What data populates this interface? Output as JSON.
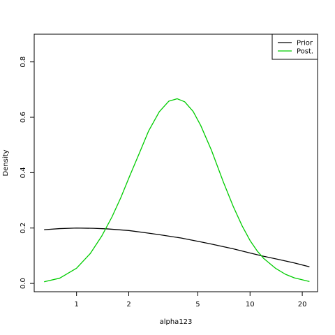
{
  "chart_data": {
    "type": "line",
    "title": "",
    "xlabel": "alpha123",
    "ylabel": "Density",
    "x_scale": "log",
    "xlim": [
      0.57,
      24.5
    ],
    "ylim": [
      -0.03,
      0.9
    ],
    "x_ticks": [
      {
        "value": 1,
        "label": "1"
      },
      {
        "value": 2,
        "label": "2"
      },
      {
        "value": 5,
        "label": "5"
      },
      {
        "value": 10,
        "label": "10"
      },
      {
        "value": 20,
        "label": "20"
      }
    ],
    "y_ticks": [
      {
        "value": 0.0,
        "label": "0.0"
      },
      {
        "value": 0.2,
        "label": "0.2"
      },
      {
        "value": 0.4,
        "label": "0.4"
      },
      {
        "value": 0.6,
        "label": "0.6"
      },
      {
        "value": 0.8,
        "label": "0.8"
      }
    ],
    "grid": false,
    "legend_position": "top-right",
    "series": [
      {
        "name": "Prior",
        "color": "#000000",
        "x": [
          0.65,
          0.8,
          1.0,
          1.25,
          1.5,
          2.0,
          2.5,
          3.0,
          4.0,
          5.0,
          6.0,
          8.0,
          10.0,
          12.0,
          15.0,
          18.0,
          22.0
        ],
        "y": [
          0.194,
          0.198,
          0.2,
          0.199,
          0.197,
          0.191,
          0.183,
          0.176,
          0.164,
          0.152,
          0.142,
          0.125,
          0.11,
          0.098,
          0.085,
          0.074,
          0.06
        ]
      },
      {
        "name": "Post.",
        "color": "#00cc00",
        "x": [
          0.65,
          0.8,
          1.0,
          1.2,
          1.4,
          1.6,
          1.8,
          2.0,
          2.3,
          2.6,
          3.0,
          3.4,
          3.8,
          4.2,
          4.7,
          5.2,
          6.0,
          7.0,
          8.0,
          9.0,
          10.0,
          11.0,
          12.0,
          14.0,
          16.0,
          18.0,
          22.0
        ],
        "y": [
          0.006,
          0.019,
          0.055,
          0.108,
          0.172,
          0.24,
          0.31,
          0.38,
          0.47,
          0.55,
          0.62,
          0.658,
          0.667,
          0.656,
          0.621,
          0.57,
          0.48,
          0.368,
          0.278,
          0.208,
          0.155,
          0.117,
          0.09,
          0.055,
          0.033,
          0.02,
          0.007
        ]
      }
    ]
  }
}
